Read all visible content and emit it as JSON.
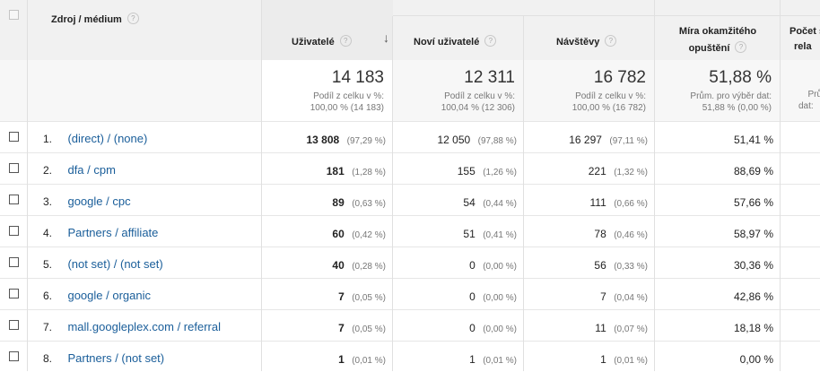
{
  "header": {
    "dimension": "Zdroj / médium",
    "col_users": "Uživatelé",
    "col_new_users": "Noví uživatelé",
    "col_sessions": "Návštěvy",
    "col_bounce_line1": "Míra okamžitého",
    "col_bounce_line2": "opuštění",
    "col_pages_line1": "Počet s",
    "col_pages_line2": "rela",
    "help_icon_text": "?",
    "sort_icon_text": "↓"
  },
  "totals": {
    "users": "14 183",
    "users_sub1": "Podíl z celku v %:",
    "users_sub2": "100,00 % (14 183)",
    "new_users": "12 311",
    "new_users_sub1": "Podíl z celku v %:",
    "new_users_sub2": "100,04 % (12 306)",
    "sessions": "16 782",
    "sessions_sub1": "Podíl z celku v %:",
    "sessions_sub2": "100,00 % (16 782)",
    "bounce": "51,88 %",
    "bounce_sub1": "Prům. pro výběr dat:",
    "bounce_sub2": "51,88 % (0,00 %)",
    "pages_sub1": "Prů",
    "pages_sub2": "dat:"
  },
  "rows": [
    {
      "idx": "1.",
      "source": "(direct) / (none)",
      "users": "13 808",
      "users_pct": "(97,29 %)",
      "new_users": "12 050",
      "new_users_pct": "(97,88 %)",
      "sessions": "16 297",
      "sessions_pct": "(97,11 %)",
      "bounce": "51,41 %"
    },
    {
      "idx": "2.",
      "source": "dfa / cpm",
      "users": "181",
      "users_pct": "(1,28 %)",
      "new_users": "155",
      "new_users_pct": "(1,26 %)",
      "sessions": "221",
      "sessions_pct": "(1,32 %)",
      "bounce": "88,69 %"
    },
    {
      "idx": "3.",
      "source": "google / cpc",
      "users": "89",
      "users_pct": "(0,63 %)",
      "new_users": "54",
      "new_users_pct": "(0,44 %)",
      "sessions": "111",
      "sessions_pct": "(0,66 %)",
      "bounce": "57,66 %"
    },
    {
      "idx": "4.",
      "source": "Partners / affiliate",
      "users": "60",
      "users_pct": "(0,42 %)",
      "new_users": "51",
      "new_users_pct": "(0,41 %)",
      "sessions": "78",
      "sessions_pct": "(0,46 %)",
      "bounce": "58,97 %"
    },
    {
      "idx": "5.",
      "source": "(not set) / (not set)",
      "users": "40",
      "users_pct": "(0,28 %)",
      "new_users": "0",
      "new_users_pct": "(0,00 %)",
      "sessions": "56",
      "sessions_pct": "(0,33 %)",
      "bounce": "30,36 %"
    },
    {
      "idx": "6.",
      "source": "google / organic",
      "users": "7",
      "users_pct": "(0,05 %)",
      "new_users": "0",
      "new_users_pct": "(0,00 %)",
      "sessions": "7",
      "sessions_pct": "(0,04 %)",
      "bounce": "42,86 %"
    },
    {
      "idx": "7.",
      "source": "mall.googleplex.com / referral",
      "users": "7",
      "users_pct": "(0,05 %)",
      "new_users": "0",
      "new_users_pct": "(0,00 %)",
      "sessions": "11",
      "sessions_pct": "(0,07 %)",
      "bounce": "18,18 %"
    },
    {
      "idx": "8.",
      "source": "Partners / (not set)",
      "users": "1",
      "users_pct": "(0,01 %)",
      "new_users": "1",
      "new_users_pct": "(0,01 %)",
      "sessions": "1",
      "sessions_pct": "(0,01 %)",
      "bounce": "0,00 %"
    }
  ]
}
